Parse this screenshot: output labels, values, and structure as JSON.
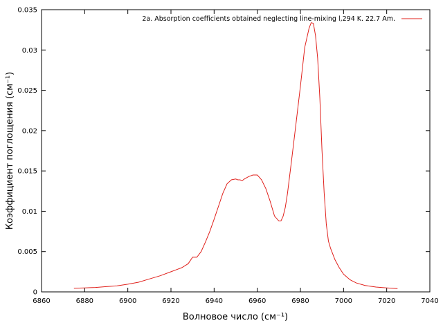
{
  "chart_data": {
    "type": "line",
    "xlabel": "Волновое число (см⁻¹)",
    "ylabel": "Коэффициент поглощения (см⁻¹)",
    "xlim": [
      6860,
      7040
    ],
    "ylim": [
      0,
      0.035
    ],
    "xticks": [
      "6860",
      "6880",
      "6900",
      "6920",
      "6940",
      "6960",
      "6980",
      "7000",
      "7020",
      "7040"
    ],
    "yticks": [
      "0",
      "0.005",
      "0.01",
      "0.015",
      "0.02",
      "0.025",
      "0.03",
      "0.035"
    ],
    "legend_position": "top-right",
    "grid": false,
    "series": [
      {
        "name": "2a. Absorption coefficients obtained neglecting line-mixing l,294 K. 22.7 Am.",
        "color": "#e0201b",
        "x": [
          6875,
          6880,
          6885,
          6890,
          6895,
          6900,
          6905,
          6910,
          6915,
          6920,
          6925,
          6928,
          6930,
          6932,
          6934,
          6936,
          6938,
          6940,
          6942,
          6944,
          6946,
          6948,
          6950,
          6951,
          6952,
          6953,
          6954,
          6956,
          6958,
          6960,
          6962,
          6964,
          6966,
          6968,
          6970,
          6971,
          6972,
          6973,
          6974,
          6976,
          6978,
          6980,
          6982,
          6984,
          6985,
          6986,
          6987,
          6988,
          6989,
          6990,
          6991,
          6992,
          6993,
          6994,
          6996,
          6998,
          7000,
          7003,
          7006,
          7010,
          7015,
          7020,
          7025
        ],
        "y": [
          0.00045,
          0.0005,
          0.00055,
          0.00065,
          0.00075,
          0.00095,
          0.0012,
          0.0016,
          0.002,
          0.0025,
          0.003,
          0.0035,
          0.0043,
          0.0043,
          0.005,
          0.0062,
          0.0075,
          0.009,
          0.0106,
          0.0122,
          0.0134,
          0.0139,
          0.014,
          0.0139,
          0.0139,
          0.0138,
          0.014,
          0.0143,
          0.0145,
          0.0145,
          0.0139,
          0.0128,
          0.0112,
          0.0094,
          0.0088,
          0.0088,
          0.0094,
          0.0105,
          0.0122,
          0.0165,
          0.021,
          0.0255,
          0.0303,
          0.0327,
          0.0334,
          0.0333,
          0.0318,
          0.029,
          0.024,
          0.0175,
          0.0123,
          0.0084,
          0.0063,
          0.0054,
          0.004,
          0.003,
          0.0022,
          0.0015,
          0.0011,
          0.0008,
          0.0006,
          0.0005,
          0.0004
        ]
      }
    ]
  }
}
